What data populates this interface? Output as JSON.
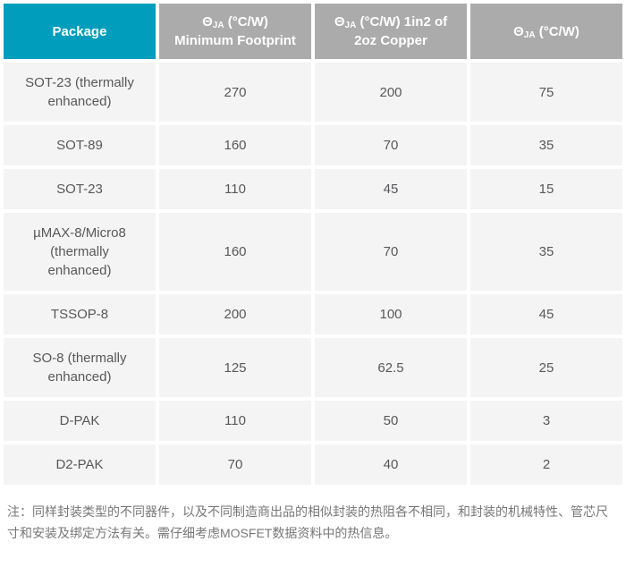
{
  "colors": {
    "accent": "#009EBC",
    "header-gray": "#ABABAB",
    "row-bg": "#F4F4F4",
    "cell-text": "#58585B",
    "footnote-text": "#777777",
    "page-bg": "#FFFFFF"
  },
  "table": {
    "header": {
      "package_label": "Package",
      "theta": "Θ",
      "theta_sub": "JA",
      "col_min_footprint": {
        "rest": " (°C/W)",
        "line2": "Minimum Footprint"
      },
      "col_copper": {
        "rest": " (°C/W) 1in2 of",
        "line2": "2oz Copper"
      },
      "col_theta_only": {
        "rest": " (°C/W)"
      }
    },
    "rows": [
      {
        "package": "SOT-23 (thermally enhanced)",
        "min_footprint": "270",
        "copper": "200",
        "theta_ja": "75"
      },
      {
        "package": "SOT-89",
        "min_footprint": "160",
        "copper": "70",
        "theta_ja": "35"
      },
      {
        "package": "SOT-23",
        "min_footprint": "110",
        "copper": "45",
        "theta_ja": "15"
      },
      {
        "package": "µMAX-8/Micro8 (thermally enhanced)",
        "min_footprint": "160",
        "copper": "70",
        "theta_ja": "35"
      },
      {
        "package": "TSSOP-8",
        "min_footprint": "200",
        "copper": "100",
        "theta_ja": "45"
      },
      {
        "package": "SO-8 (thermally enhanced)",
        "min_footprint": "125",
        "copper": "62.5",
        "theta_ja": "25"
      },
      {
        "package": "D-PAK",
        "min_footprint": "110",
        "copper": "50",
        "theta_ja": "3"
      },
      {
        "package": "D2-PAK",
        "min_footprint": "70",
        "copper": "40",
        "theta_ja": "2"
      }
    ]
  },
  "footnote": "注：同样封装类型的不同器件，以及不同制造商出品的相似封装的热阻各不相同，和封装的机械特性、管芯尺寸和安装及绑定方法有关。需仔细考虑MOSFET数据资料中的热信息。",
  "chart_data": {
    "type": "table",
    "title": "",
    "columns": [
      "Package",
      "ΘJA (°C/W) Minimum Footprint",
      "ΘJA (°C/W) 1in2 of 2oz Copper",
      "ΘJA (°C/W)"
    ],
    "rows": [
      [
        "SOT-23 (thermally enhanced)",
        270,
        200,
        75
      ],
      [
        "SOT-89",
        160,
        70,
        35
      ],
      [
        "SOT-23",
        110,
        45,
        15
      ],
      [
        "µMAX-8/Micro8 (thermally enhanced)",
        160,
        70,
        35
      ],
      [
        "TSSOP-8",
        200,
        100,
        45
      ],
      [
        "SO-8 (thermally enhanced)",
        125,
        62.5,
        25
      ],
      [
        "D-PAK",
        110,
        50,
        3
      ],
      [
        "D2-PAK",
        70,
        40,
        2
      ]
    ],
    "footnote": "注：同样封装类型的不同器件，以及不同制造商出品的相似封装的热阻各不相同，和封装的机械特性、管芯尺寸和安装及绑定方法有关。需仔细考虑MOSFET数据资料中的热信息。"
  }
}
